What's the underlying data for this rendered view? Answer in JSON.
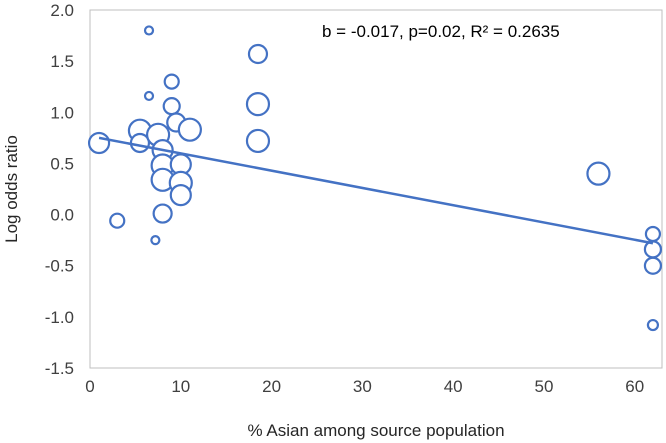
{
  "chart_data": {
    "type": "scatter",
    "subtype": "bubble",
    "title": "",
    "xlabel": "% Asian among source population",
    "ylabel": "Log odds ratio",
    "annotation": "b = -0.017, p=0.02, R² = 0.2635",
    "xlim": [
      0,
      63
    ],
    "ylim": [
      -1.5,
      2.0
    ],
    "xticks": [
      0,
      10,
      20,
      30,
      40,
      50,
      60
    ],
    "yticks": [
      -1.5,
      -1.0,
      -0.5,
      0.0,
      0.5,
      1.0,
      1.5,
      2.0
    ],
    "xtick_labels": [
      "0",
      "10",
      "20",
      "30",
      "40",
      "50",
      "60"
    ],
    "ytick_labels": [
      "-1.5",
      "-1.0",
      "-0.5",
      "0.0",
      "0.5",
      "1.0",
      "1.5",
      "2.0"
    ],
    "grid": false,
    "marker_color": "#4472C4",
    "trendline": {
      "slope": -0.017,
      "x": [
        1.0,
        62.0
      ],
      "y": [
        0.75,
        -0.28
      ]
    },
    "points": [
      {
        "x": 1.0,
        "y": 0.7,
        "w": 10
      },
      {
        "x": 3.0,
        "y": -0.06,
        "w": 7
      },
      {
        "x": 5.5,
        "y": 0.82,
        "w": 11
      },
      {
        "x": 5.5,
        "y": 0.7,
        "w": 9
      },
      {
        "x": 6.5,
        "y": 1.8,
        "w": 4
      },
      {
        "x": 6.5,
        "y": 1.16,
        "w": 4
      },
      {
        "x": 7.2,
        "y": -0.25,
        "w": 4
      },
      {
        "x": 7.5,
        "y": 0.78,
        "w": 11
      },
      {
        "x": 8.0,
        "y": 0.63,
        "w": 10
      },
      {
        "x": 8.0,
        "y": 0.48,
        "w": 11
      },
      {
        "x": 8.0,
        "y": 0.34,
        "w": 11
      },
      {
        "x": 8.0,
        "y": 0.01,
        "w": 9
      },
      {
        "x": 9.0,
        "y": 1.3,
        "w": 7
      },
      {
        "x": 9.0,
        "y": 1.06,
        "w": 8
      },
      {
        "x": 9.5,
        "y": 0.9,
        "w": 9
      },
      {
        "x": 10.0,
        "y": 0.49,
        "w": 10
      },
      {
        "x": 10.0,
        "y": 0.31,
        "w": 11
      },
      {
        "x": 10.0,
        "y": 0.19,
        "w": 10
      },
      {
        "x": 11.0,
        "y": 0.83,
        "w": 11
      },
      {
        "x": 18.5,
        "y": 1.57,
        "w": 9
      },
      {
        "x": 18.5,
        "y": 1.08,
        "w": 11
      },
      {
        "x": 18.5,
        "y": 0.72,
        "w": 11
      },
      {
        "x": 56.0,
        "y": 0.4,
        "w": 11
      },
      {
        "x": 62.0,
        "y": -0.19,
        "w": 7
      },
      {
        "x": 62.0,
        "y": -0.34,
        "w": 8
      },
      {
        "x": 62.0,
        "y": -0.5,
        "w": 8
      },
      {
        "x": 62.0,
        "y": -1.08,
        "w": 5
      }
    ]
  }
}
